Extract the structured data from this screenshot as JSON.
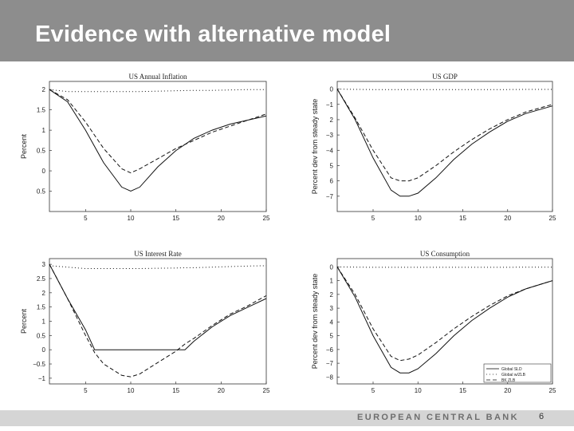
{
  "slide": {
    "title": "Evidence with alternative model",
    "footer_text": "EUROPEAN CENTRAL BANK",
    "page_number": "6",
    "colors": {
      "title_bar": "#8d8d8d",
      "footer_bar": "#d5d5d5",
      "title_text": "#ffffff"
    }
  },
  "chart_data": [
    {
      "type": "line",
      "title": "US Annual Inflation",
      "ylabel": "Percent",
      "xlim": [
        1,
        25
      ],
      "ylim": [
        -1,
        2.2
      ],
      "xticks": [
        5,
        10,
        15,
        20,
        25
      ],
      "yticks": [
        {
          "value": 2,
          "label": "2"
        },
        {
          "value": 1.5,
          "label": "1.5"
        },
        {
          "value": 1,
          "label": "1"
        },
        {
          "value": 0.5,
          "label": "0.5"
        },
        {
          "value": 0,
          "label": "0"
        },
        {
          "value": -0.5,
          "label": "0.5"
        }
      ],
      "x": [
        1,
        3,
        5,
        7,
        9,
        10,
        11,
        13,
        15,
        17,
        19,
        21,
        23,
        25
      ],
      "series": [
        {
          "style": "solid",
          "values": [
            2.0,
            1.7,
            1.0,
            0.2,
            -0.4,
            -0.5,
            -0.4,
            0.1,
            0.5,
            0.8,
            1.0,
            1.15,
            1.25,
            1.35
          ]
        },
        {
          "style": "dashed",
          "values": [
            2.0,
            1.75,
            1.2,
            0.55,
            0.05,
            -0.05,
            0.05,
            0.3,
            0.55,
            0.75,
            0.95,
            1.1,
            1.25,
            1.4
          ]
        },
        {
          "style": "dotted",
          "values": [
            2.0,
            1.95,
            1.95,
            1.95,
            1.95,
            1.95,
            1.95,
            1.96,
            1.97,
            1.98,
            1.98,
            1.99,
            2.0,
            2.0
          ]
        }
      ]
    },
    {
      "type": "line",
      "title": "US GDP",
      "ylabel": "Percent dev from steady state",
      "xlim": [
        1,
        25
      ],
      "ylim": [
        -8,
        0.5
      ],
      "xticks": [
        5,
        10,
        15,
        20,
        25
      ],
      "yticks": [
        {
          "value": 0,
          "label": "0"
        },
        {
          "value": -1,
          "label": "−1"
        },
        {
          "value": -2,
          "label": "2"
        },
        {
          "value": -3,
          "label": "−3"
        },
        {
          "value": -4,
          "label": "−4"
        },
        {
          "value": -5,
          "label": "5"
        },
        {
          "value": -6,
          "label": "6"
        },
        {
          "value": -7,
          "label": "−7"
        }
      ],
      "x": [
        1,
        3,
        5,
        7,
        8,
        9,
        10,
        12,
        14,
        16,
        18,
        20,
        22,
        25
      ],
      "series": [
        {
          "style": "solid",
          "values": [
            0,
            -2.0,
            -4.5,
            -6.6,
            -7.0,
            -7.0,
            -6.8,
            -5.8,
            -4.6,
            -3.6,
            -2.8,
            -2.1,
            -1.6,
            -1.1
          ]
        },
        {
          "style": "dashed",
          "values": [
            0,
            -1.9,
            -4.0,
            -5.8,
            -6.0,
            -6.0,
            -5.8,
            -5.0,
            -4.1,
            -3.3,
            -2.6,
            -2.0,
            -1.5,
            -1.0
          ]
        },
        {
          "style": "dotted",
          "values": [
            0,
            -0.02,
            -0.03,
            -0.03,
            -0.03,
            -0.03,
            -0.03,
            -0.03,
            -0.03,
            -0.03,
            -0.03,
            -0.03,
            -0.02,
            -0.02
          ]
        }
      ]
    },
    {
      "type": "line",
      "title": "US Interest Rate",
      "ylabel": "Percent",
      "xlim": [
        1,
        25
      ],
      "ylim": [
        -1.2,
        3.2
      ],
      "xticks": [
        5,
        10,
        15,
        20,
        25
      ],
      "yticks": [
        {
          "value": 3,
          "label": "3"
        },
        {
          "value": 2.5,
          "label": "2.5"
        },
        {
          "value": 2,
          "label": "2"
        },
        {
          "value": 1.5,
          "label": "1.5"
        },
        {
          "value": 1,
          "label": "1"
        },
        {
          "value": 0.5,
          "label": "0.5"
        },
        {
          "value": 0,
          "label": "0"
        },
        {
          "value": -0.5,
          "label": "−0.5"
        },
        {
          "value": -1,
          "label": "−1"
        }
      ],
      "x": [
        1,
        3,
        5,
        6,
        7,
        9,
        10,
        11,
        13,
        15,
        16,
        17,
        19,
        21,
        23,
        25
      ],
      "series": [
        {
          "style": "solid",
          "values": [
            3.0,
            1.8,
            0.7,
            0.0,
            0.0,
            0.0,
            0.0,
            0.0,
            0.0,
            0.0,
            0.0,
            0.3,
            0.8,
            1.2,
            1.5,
            1.8
          ]
        },
        {
          "style": "dashed",
          "values": [
            3.0,
            1.8,
            0.5,
            -0.1,
            -0.5,
            -0.9,
            -0.95,
            -0.85,
            -0.45,
            -0.05,
            0.2,
            0.4,
            0.85,
            1.25,
            1.55,
            1.9
          ]
        },
        {
          "style": "dotted",
          "values": [
            2.95,
            2.9,
            2.85,
            2.85,
            2.85,
            2.85,
            2.85,
            2.85,
            2.86,
            2.87,
            2.88,
            2.88,
            2.9,
            2.92,
            2.94,
            2.95
          ]
        }
      ]
    },
    {
      "type": "line",
      "title": "US Consumption",
      "ylabel": "Percent dev from steady state",
      "xlim": [
        1,
        25
      ],
      "ylim": [
        -8.5,
        0.6
      ],
      "xticks": [
        5,
        10,
        15,
        20,
        25
      ],
      "yticks": [
        {
          "value": 0,
          "label": "0"
        },
        {
          "value": -1,
          "label": "1"
        },
        {
          "value": -2,
          "label": "2"
        },
        {
          "value": -3,
          "label": "3"
        },
        {
          "value": -4,
          "label": "4"
        },
        {
          "value": -5,
          "label": "5"
        },
        {
          "value": -6,
          "label": "−6"
        },
        {
          "value": -7,
          "label": "−7"
        },
        {
          "value": -8,
          "label": "−8"
        }
      ],
      "x": [
        1,
        3,
        5,
        7,
        8,
        9,
        10,
        12,
        14,
        16,
        18,
        20,
        22,
        25
      ],
      "series": [
        {
          "style": "solid",
          "values": [
            0,
            -2.2,
            -5.0,
            -7.3,
            -7.7,
            -7.7,
            -7.4,
            -6.3,
            -5.0,
            -3.9,
            -3.0,
            -2.2,
            -1.6,
            -1.0
          ]
        },
        {
          "style": "dashed",
          "values": [
            0,
            -2.0,
            -4.5,
            -6.5,
            -6.8,
            -6.7,
            -6.4,
            -5.5,
            -4.5,
            -3.6,
            -2.8,
            -2.1,
            -1.6,
            -1.0
          ]
        },
        {
          "style": "dotted",
          "values": [
            0,
            -0.02,
            -0.03,
            -0.03,
            -0.03,
            -0.03,
            -0.03,
            -0.03,
            -0.03,
            -0.03,
            -0.03,
            -0.03,
            -0.02,
            -0.02
          ]
        }
      ],
      "legend": {
        "placement": "bottom-right",
        "entries": [
          {
            "label": "Global SLD",
            "style": "solid"
          },
          {
            "label": "Global w/ZLB",
            "style": "dotted"
          },
          {
            "label": "BK ZLB",
            "style": "dashed"
          }
        ]
      }
    }
  ]
}
